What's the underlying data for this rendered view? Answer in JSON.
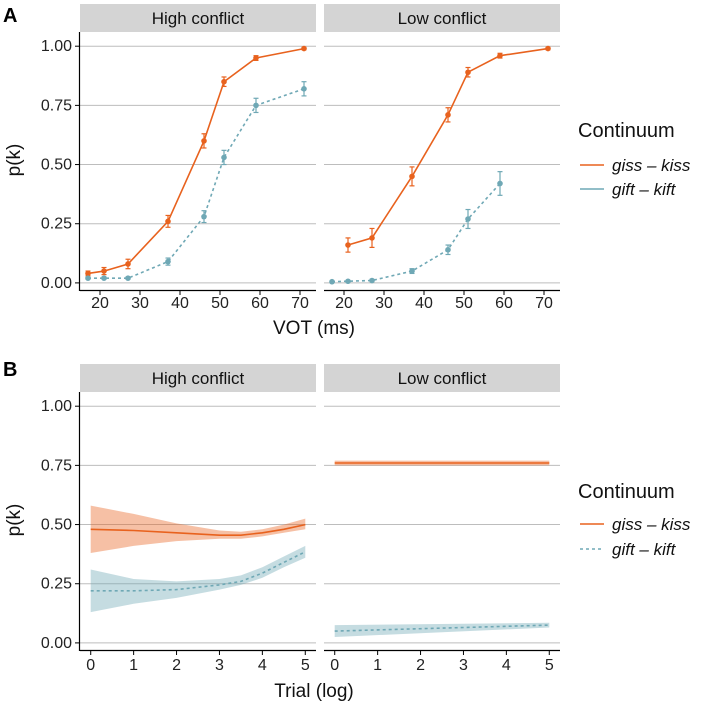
{
  "chart_data": [
    {
      "panel_label": "A",
      "type": "line",
      "facets": [
        "High conflict",
        "Low conflict"
      ],
      "xlabel": "VOT (ms)",
      "ylabel": "p(k)",
      "xticks": [
        20,
        30,
        40,
        50,
        60,
        70
      ],
      "xlim": [
        15,
        74
      ],
      "yticks": [
        "0.00",
        "0.25",
        "0.50",
        "0.75",
        "1.00"
      ],
      "ylim": [
        -0.03,
        1.06
      ],
      "legend_title": "Continuum",
      "series": [
        {
          "name": "giss – kiss",
          "color": "#E8621E",
          "linestyle": "solid",
          "panels": [
            {
              "x": [
                17,
                21,
                27,
                37,
                46,
                51,
                59,
                71
              ],
              "y": [
                0.04,
                0.05,
                0.08,
                0.26,
                0.6,
                0.85,
                0.95,
                0.99
              ],
              "err": [
                0.01,
                0.015,
                0.02,
                0.025,
                0.03,
                0.02,
                0.01,
                0.005
              ]
            },
            {
              "x": [
                21,
                27,
                37,
                46,
                51,
                59,
                71
              ],
              "y": [
                0.16,
                0.19,
                0.45,
                0.71,
                0.89,
                0.96,
                0.99
              ],
              "err": [
                0.03,
                0.04,
                0.04,
                0.03,
                0.02,
                0.01,
                0.005
              ]
            }
          ]
        },
        {
          "name": "gift – kift",
          "color": "#6FA8B5",
          "linestyle": "dashed",
          "panels": [
            {
              "x": [
                17,
                21,
                27,
                37,
                46,
                51,
                59,
                71
              ],
              "y": [
                0.02,
                0.02,
                0.02,
                0.09,
                0.28,
                0.53,
                0.75,
                0.82
              ],
              "err": [
                0.005,
                0.005,
                0.005,
                0.015,
                0.025,
                0.03,
                0.03,
                0.03
              ]
            },
            {
              "x": [
                17,
                21,
                27,
                37,
                46,
                51,
                59
              ],
              "y": [
                0.005,
                0.007,
                0.01,
                0.05,
                0.14,
                0.27,
                0.42
              ],
              "err": [
                0.003,
                0.003,
                0.005,
                0.01,
                0.02,
                0.04,
                0.05
              ]
            }
          ]
        }
      ]
    },
    {
      "panel_label": "B",
      "type": "line",
      "facets": [
        "High conflict",
        "Low conflict"
      ],
      "xlabel": "Trial (log)",
      "ylabel": "p(k)",
      "xticks": [
        0,
        1,
        2,
        3,
        4,
        5
      ],
      "xlim": [
        -0.25,
        5.25
      ],
      "yticks": [
        "0.00",
        "0.25",
        "0.50",
        "0.75",
        "1.00"
      ],
      "ylim": [
        -0.03,
        1.06
      ],
      "legend_title": "Continuum",
      "series": [
        {
          "name": "giss – kiss",
          "color": "#E8621E",
          "linestyle": "solid",
          "panels": [
            {
              "x": [
                0,
                1,
                2,
                3,
                3.5,
                4,
                4.5,
                5
              ],
              "y": [
                0.48,
                0.475,
                0.465,
                0.455,
                0.455,
                0.465,
                0.48,
                0.5
              ],
              "lower": [
                0.38,
                0.41,
                0.43,
                0.44,
                0.44,
                0.45,
                0.465,
                0.48
              ],
              "upper": [
                0.58,
                0.545,
                0.505,
                0.475,
                0.47,
                0.48,
                0.5,
                0.525
              ]
            },
            {
              "x": [
                0,
                5
              ],
              "y": [
                0.76,
                0.76
              ],
              "lower": [
                0.75,
                0.75
              ],
              "upper": [
                0.77,
                0.77
              ]
            }
          ]
        },
        {
          "name": "gift – kift",
          "color": "#6FA8B5",
          "linestyle": "dashed",
          "panels": [
            {
              "x": [
                0,
                1,
                2,
                3,
                3.5,
                4,
                4.5,
                5
              ],
              "y": [
                0.22,
                0.22,
                0.225,
                0.245,
                0.26,
                0.295,
                0.34,
                0.385
              ],
              "lower": [
                0.13,
                0.165,
                0.19,
                0.225,
                0.245,
                0.275,
                0.32,
                0.36
              ],
              "upper": [
                0.31,
                0.27,
                0.26,
                0.27,
                0.285,
                0.32,
                0.365,
                0.41
              ]
            },
            {
              "x": [
                0,
                5
              ],
              "y": [
                0.05,
                0.075
              ],
              "lower": [
                0.025,
                0.065
              ],
              "upper": [
                0.075,
                0.085
              ]
            }
          ]
        }
      ]
    }
  ]
}
